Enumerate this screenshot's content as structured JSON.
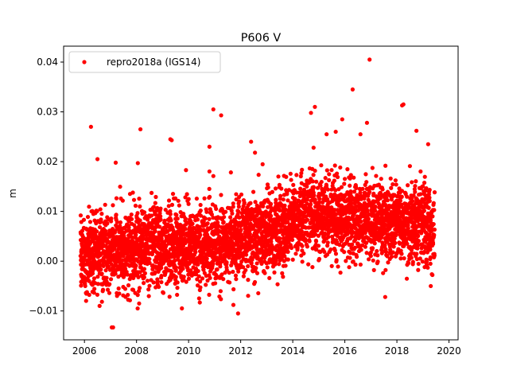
{
  "chart_data": {
    "type": "scatter",
    "title": "P606 V",
    "xlabel": "",
    "ylabel": "m",
    "xlim": [
      2005.2,
      2020.35
    ],
    "ylim": [
      -0.0158,
      0.0432
    ],
    "x_ticks": [
      2006,
      2008,
      2010,
      2012,
      2014,
      2016,
      2018,
      2020
    ],
    "x_tick_labels": [
      "2006",
      "2008",
      "2010",
      "2012",
      "2014",
      "2016",
      "2018",
      "2020"
    ],
    "y_ticks": [
      -0.01,
      0.0,
      0.01,
      0.02,
      0.03,
      0.04
    ],
    "y_tick_labels": [
      "−0.01",
      "0.00",
      "0.01",
      "0.02",
      "0.03",
      "0.04"
    ],
    "grid": false,
    "legend": {
      "placement": "upper-left"
    },
    "series": [
      {
        "name": "repro2018a (IGS14)",
        "color": "#ff0000",
        "marker": "dot",
        "date_range": [
          2005.85,
          2019.45
        ],
        "density": "daily",
        "trend": [
          [
            2005.85,
            0.0015
          ],
          [
            2007.0,
            0.002
          ],
          [
            2008.0,
            0.0025
          ],
          [
            2009.0,
            0.003
          ],
          [
            2010.0,
            0.003
          ],
          [
            2011.0,
            0.0035
          ],
          [
            2012.0,
            0.0045
          ],
          [
            2013.0,
            0.0055
          ],
          [
            2013.8,
            0.007
          ],
          [
            2014.3,
            0.0095
          ],
          [
            2015.0,
            0.0095
          ],
          [
            2016.0,
            0.008
          ],
          [
            2017.0,
            0.008
          ],
          [
            2018.0,
            0.008
          ],
          [
            2019.0,
            0.007
          ],
          [
            2019.45,
            0.0065
          ]
        ],
        "scatter_sd": 0.0045,
        "outliers": [
          {
            "x": 2006.25,
            "y": 0.027
          },
          {
            "x": 2006.5,
            "y": 0.0205
          },
          {
            "x": 2007.05,
            "y": -0.0133
          },
          {
            "x": 2007.1,
            "y": -0.0133
          },
          {
            "x": 2007.2,
            "y": 0.0198
          },
          {
            "x": 2008.05,
            "y": 0.0197
          },
          {
            "x": 2008.15,
            "y": 0.0265
          },
          {
            "x": 2008.1,
            "y": -0.0085
          },
          {
            "x": 2009.3,
            "y": 0.0245
          },
          {
            "x": 2009.35,
            "y": 0.0243
          },
          {
            "x": 2009.9,
            "y": 0.0183
          },
          {
            "x": 2010.8,
            "y": 0.023
          },
          {
            "x": 2010.95,
            "y": 0.0305
          },
          {
            "x": 2011.25,
            "y": 0.0293
          },
          {
            "x": 2011.9,
            "y": -0.0105
          },
          {
            "x": 2012.4,
            "y": 0.024
          },
          {
            "x": 2012.55,
            "y": 0.0218
          },
          {
            "x": 2014.7,
            "y": 0.0298
          },
          {
            "x": 2014.85,
            "y": 0.031
          },
          {
            "x": 2014.8,
            "y": 0.0228
          },
          {
            "x": 2015.3,
            "y": 0.0255
          },
          {
            "x": 2015.65,
            "y": 0.026
          },
          {
            "x": 2015.9,
            "y": 0.0285
          },
          {
            "x": 2016.3,
            "y": 0.0345
          },
          {
            "x": 2016.6,
            "y": 0.0255
          },
          {
            "x": 2016.95,
            "y": 0.0405
          },
          {
            "x": 2016.85,
            "y": 0.0278
          },
          {
            "x": 2017.55,
            "y": -0.0072
          },
          {
            "x": 2018.2,
            "y": 0.0313
          },
          {
            "x": 2018.25,
            "y": 0.0315
          },
          {
            "x": 2018.75,
            "y": 0.0262
          },
          {
            "x": 2019.2,
            "y": 0.0235
          },
          {
            "x": 2019.3,
            "y": -0.005
          }
        ]
      }
    ]
  }
}
